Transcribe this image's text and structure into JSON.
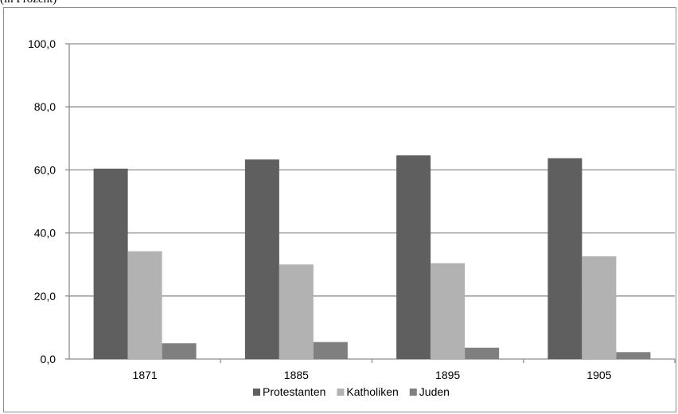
{
  "caption": "(in Prozent)",
  "chart_data": {
    "type": "bar",
    "title": "",
    "xlabel": "",
    "ylabel": "",
    "ylim": [
      0,
      100
    ],
    "yticks": [
      "0,0",
      "20,0",
      "40,0",
      "60,0",
      "80,0",
      "100,0"
    ],
    "ytick_values": [
      0,
      20,
      40,
      60,
      80,
      100
    ],
    "grid": true,
    "legend_position": "bottom",
    "categories": [
      "1871",
      "1885",
      "1895",
      "1905"
    ],
    "series": [
      {
        "name": "Protestanten",
        "color": "#5f5f5f",
        "values": [
          60.4,
          63.3,
          64.6,
          63.7
        ]
      },
      {
        "name": "Katholiken",
        "color": "#b2b2b2",
        "values": [
          34.2,
          30.0,
          30.4,
          32.6
        ]
      },
      {
        "name": "Juden",
        "color": "#7f7f7f",
        "values": [
          5.0,
          5.4,
          3.6,
          2.2
        ]
      }
    ]
  }
}
